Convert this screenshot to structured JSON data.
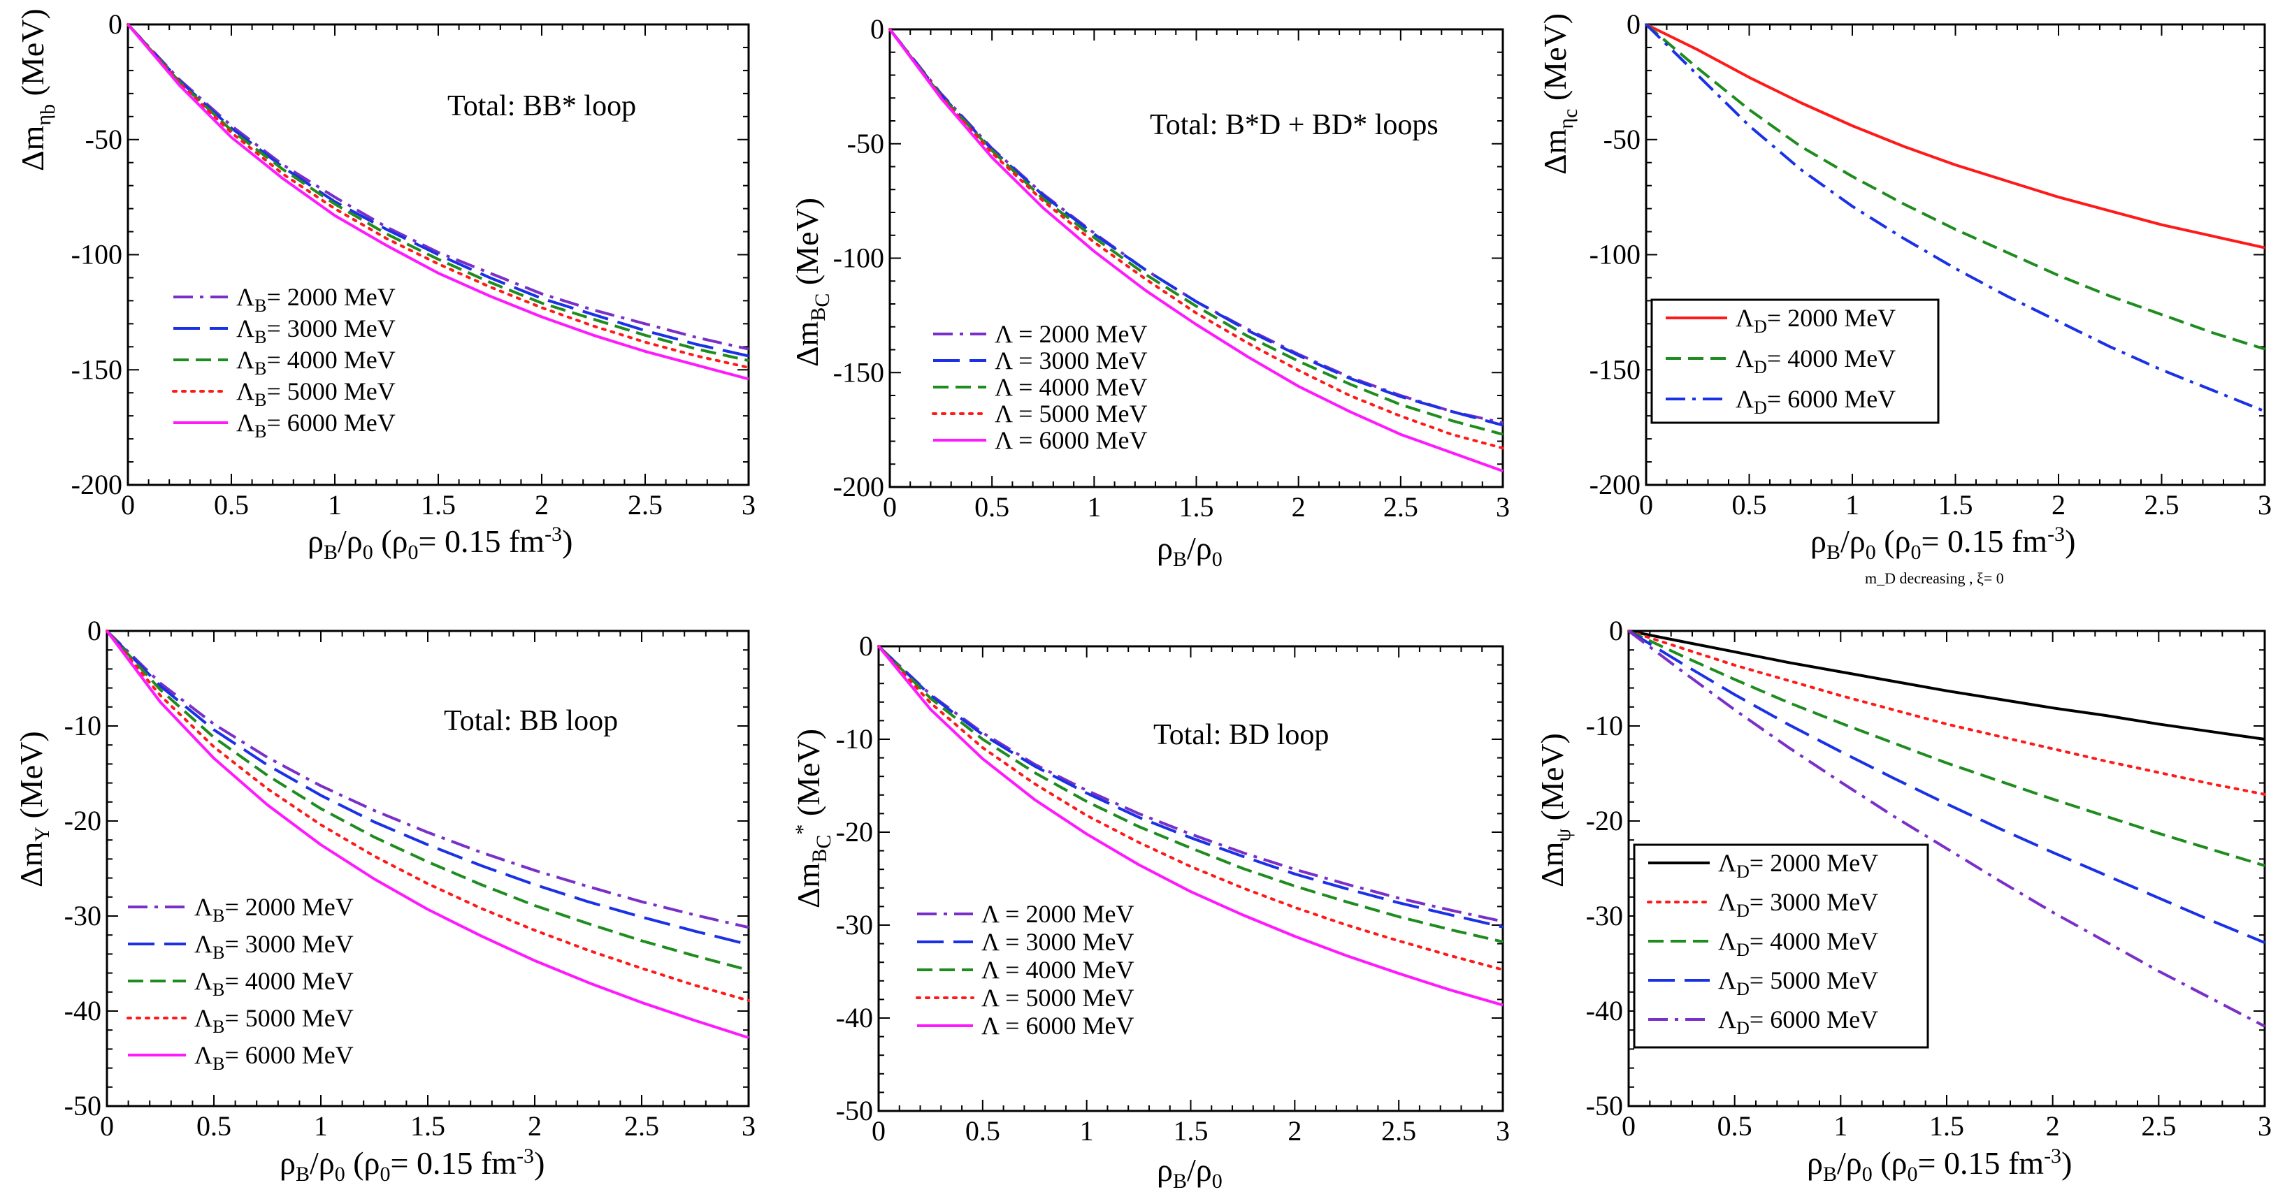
{
  "figure": {
    "note": "m_D decreasing , ξ= 0"
  },
  "chart_data": [
    {
      "id": "p1",
      "type": "line",
      "title": "Total: BB* loop",
      "xlabel": "ρ_B/ρ_0 (ρ_0= 0.15 fm^-3)",
      "ylabel": "Δm_ηb (MeV)",
      "xlim": [
        0,
        3
      ],
      "ylim": [
        -200,
        0
      ],
      "xticks": [
        0,
        0.5,
        1,
        1.5,
        2,
        2.5,
        3
      ],
      "xticklabels": [
        "0",
        "0.5",
        "1",
        "1.5",
        "2",
        "2.5",
        "3"
      ],
      "yticks": [
        0,
        -50,
        -100,
        -150,
        -200
      ],
      "yticklabels": [
        "0",
        "-50",
        "-100",
        "-150",
        "-200"
      ],
      "x": [
        0,
        0.25,
        0.5,
        0.75,
        1,
        1.25,
        1.5,
        1.75,
        2,
        2.25,
        2.5,
        2.75,
        3
      ],
      "series": [
        {
          "name": "Λ_B= 2000 MeV",
          "color": "#7a2fc8",
          "dash": "dashdot",
          "values": [
            0,
            -24,
            -44,
            -61,
            -75,
            -88,
            -99,
            -108,
            -117,
            -124,
            -130,
            -136,
            -141
          ]
        },
        {
          "name": "Λ_B= 3000 MeV",
          "color": "#1a31e6",
          "dash": "longdash",
          "values": [
            0,
            -24.5,
            -45,
            -62,
            -77,
            -89,
            -100,
            -110,
            -119,
            -126,
            -133,
            -139,
            -144
          ]
        },
        {
          "name": "Λ_B= 4000 MeV",
          "color": "#1f8c1f",
          "dash": "dash",
          "values": [
            0,
            -25,
            -46,
            -63,
            -78,
            -91,
            -102,
            -112,
            -121,
            -128,
            -135,
            -141,
            -146
          ]
        },
        {
          "name": "Λ_B= 5000 MeV",
          "color": "#ff1a1a",
          "dash": "dot",
          "values": [
            0,
            -25.5,
            -47,
            -65,
            -80,
            -93,
            -104,
            -114,
            -123,
            -131,
            -138,
            -144,
            -149
          ]
        },
        {
          "name": "Λ_B= 6000 MeV",
          "color": "#ff19ff",
          "dash": "solid",
          "values": [
            0,
            -26.5,
            -49,
            -67,
            -83,
            -96,
            -108,
            -118,
            -127,
            -135,
            -142,
            -148,
            -154
          ]
        }
      ]
    },
    {
      "id": "p2",
      "type": "line",
      "title": "Total: B*D + BD* loops",
      "xlabel": "ρ_B/ρ_0",
      "ylabel": "Δm_BC (MeV)",
      "xlim": [
        0,
        3
      ],
      "ylim": [
        -200,
        0
      ],
      "xticks": [
        0,
        0.5,
        1,
        1.5,
        2,
        2.5,
        3
      ],
      "xticklabels": [
        "0",
        "0.5",
        "1",
        "1.5",
        "2",
        "2.5",
        "3"
      ],
      "yticks": [
        0,
        -50,
        -100,
        -150,
        -200
      ],
      "yticklabels": [
        "0",
        "-50",
        "-100",
        "-150",
        "-200"
      ],
      "x": [
        0,
        0.25,
        0.5,
        0.75,
        1,
        1.25,
        1.5,
        1.75,
        2,
        2.25,
        2.5,
        2.75,
        3
      ],
      "series": [
        {
          "name": "Λ = 2000 MeV",
          "color": "#7a2fc8",
          "dash": "dashdot",
          "values": [
            0,
            -28,
            -52,
            -72,
            -89,
            -105,
            -119,
            -131,
            -142,
            -152,
            -160,
            -167,
            -172
          ]
        },
        {
          "name": "Λ = 3000 MeV",
          "color": "#1a31e6",
          "dash": "longdash",
          "values": [
            0,
            -28.5,
            -52.5,
            -72.5,
            -89.5,
            -105,
            -119,
            -131.5,
            -142.5,
            -152.5,
            -160.5,
            -167,
            -173
          ]
        },
        {
          "name": "Λ = 4000 MeV",
          "color": "#1f8c1f",
          "dash": "dash",
          "values": [
            0,
            -29,
            -53,
            -74,
            -91,
            -107,
            -121,
            -134,
            -145,
            -155,
            -164,
            -171,
            -177
          ]
        },
        {
          "name": "Λ = 5000 MeV",
          "color": "#ff1a1a",
          "dash": "dot",
          "values": [
            0,
            -29.5,
            -54,
            -75,
            -93,
            -109,
            -124,
            -137,
            -149,
            -160,
            -169,
            -177,
            -183
          ]
        },
        {
          "name": "Λ = 6000 MeV",
          "color": "#ff19ff",
          "dash": "solid",
          "values": [
            0,
            -30,
            -56,
            -78,
            -97,
            -114,
            -129,
            -143,
            -156,
            -167,
            -177,
            -185,
            -193
          ]
        }
      ]
    },
    {
      "id": "p3",
      "type": "line",
      "title": "",
      "xlabel": "ρ_B/ρ_0 (ρ_0= 0.15 fm^-3)",
      "ylabel": "Δm_ηc (MeV)",
      "xlim": [
        0,
        3
      ],
      "ylim": [
        -200,
        0
      ],
      "xticks": [
        0,
        0.5,
        1,
        1.5,
        2,
        2.5,
        3
      ],
      "xticklabels": [
        "0",
        "0.5",
        "1",
        "1.5",
        "2",
        "2.5",
        "3"
      ],
      "yticks": [
        0,
        -50,
        -100,
        -150,
        -200
      ],
      "yticklabels": [
        "0",
        "-50",
        "-100",
        "-150",
        "-200"
      ],
      "x": [
        0,
        0.25,
        0.5,
        0.75,
        1,
        1.25,
        1.5,
        1.75,
        2,
        2.25,
        2.5,
        2.75,
        3
      ],
      "series": [
        {
          "name": "Λ_D= 2000 MeV",
          "color": "#ff1a1a",
          "dash": "solid",
          "values": [
            0,
            -11,
            -23,
            -34,
            -44,
            -53,
            -61,
            -68,
            -75,
            -81,
            -87,
            -92,
            -97
          ]
        },
        {
          "name": "Λ_D= 4000 MeV",
          "color": "#1f8c1f",
          "dash": "dash",
          "values": [
            0,
            -19,
            -37,
            -53,
            -66,
            -78,
            -89,
            -99,
            -109,
            -118,
            -126,
            -134,
            -141
          ]
        },
        {
          "name": "Λ_D= 6000 MeV",
          "color": "#1a31e6",
          "dash": "dashdot",
          "values": [
            0,
            -22,
            -44,
            -63,
            -79,
            -93,
            -106,
            -118,
            -129,
            -140,
            -150,
            -159,
            -168
          ]
        }
      ]
    },
    {
      "id": "p4",
      "type": "line",
      "title": "Total: BB loop",
      "xlabel": "ρ_B/ρ_0 (ρ_0= 0.15 fm^-3)",
      "ylabel": "Δm_Υ (MeV)",
      "xlim": [
        0,
        3
      ],
      "ylim": [
        -50,
        0
      ],
      "xticks": [
        0,
        0.5,
        1,
        1.5,
        2,
        2.5,
        3
      ],
      "xticklabels": [
        "0",
        "0.5",
        "1",
        "1.5",
        "2",
        "2.5",
        "3"
      ],
      "yticks": [
        0,
        -10,
        -20,
        -30,
        -40,
        -50
      ],
      "yticklabels": [
        "0",
        "-10",
        "-20",
        "-30",
        "-40",
        "-50"
      ],
      "x": [
        0,
        0.25,
        0.5,
        0.75,
        1,
        1.25,
        1.5,
        1.75,
        2,
        2.25,
        2.5,
        2.75,
        3
      ],
      "series": [
        {
          "name": "Λ_B= 2000 MeV",
          "color": "#7a2fc8",
          "dash": "dashdot",
          "values": [
            0,
            -5.5,
            -9.8,
            -13.3,
            -16.3,
            -18.9,
            -21.2,
            -23.3,
            -25.2,
            -26.9,
            -28.5,
            -29.9,
            -31.2
          ]
        },
        {
          "name": "Λ_B= 3000 MeV",
          "color": "#1a31e6",
          "dash": "longdash",
          "values": [
            0,
            -5.8,
            -10.4,
            -14.1,
            -17.3,
            -20.1,
            -22.5,
            -24.7,
            -26.7,
            -28.5,
            -30.1,
            -31.6,
            -33
          ]
        },
        {
          "name": "Λ_B= 4000 MeV",
          "color": "#1f8c1f",
          "dash": "dash",
          "values": [
            0,
            -6.2,
            -11.2,
            -15.2,
            -18.7,
            -21.7,
            -24.3,
            -26.7,
            -28.9,
            -30.8,
            -32.6,
            -34.2,
            -35.7
          ]
        },
        {
          "name": "Λ_B= 5000 MeV",
          "color": "#ff1a1a",
          "dash": "dot",
          "values": [
            0,
            -6.8,
            -12.2,
            -16.6,
            -20.4,
            -23.7,
            -26.6,
            -29.2,
            -31.5,
            -33.6,
            -35.5,
            -37.3,
            -38.9
          ]
        },
        {
          "name": "Λ_B= 6000 MeV",
          "color": "#ff19ff",
          "dash": "solid",
          "values": [
            0,
            -7.5,
            -13.4,
            -18.3,
            -22.5,
            -26.1,
            -29.3,
            -32.1,
            -34.7,
            -37,
            -39.1,
            -41,
            -42.8
          ]
        }
      ]
    },
    {
      "id": "p5",
      "type": "line",
      "title": "Total: BD loop",
      "xlabel": "ρ_B/ρ_0",
      "ylabel": "Δm_BC* (MeV)",
      "xlim": [
        0,
        3
      ],
      "ylim": [
        -50,
        0
      ],
      "xticks": [
        0,
        0.5,
        1,
        1.5,
        2,
        2.5,
        3
      ],
      "xticklabels": [
        "0",
        "0.5",
        "1",
        "1.5",
        "2",
        "2.5",
        "3"
      ],
      "yticks": [
        0,
        -10,
        -20,
        -30,
        -40,
        -50
      ],
      "yticklabels": [
        "0",
        "-10",
        "-20",
        "-30",
        "-40",
        "-50"
      ],
      "x": [
        0,
        0.25,
        0.5,
        0.75,
        1,
        1.25,
        1.5,
        1.75,
        2,
        2.25,
        2.5,
        2.75,
        3
      ],
      "series": [
        {
          "name": "Λ = 2000 MeV",
          "color": "#7a2fc8",
          "dash": "dashdot",
          "values": [
            0,
            -5.2,
            -9.3,
            -12.7,
            -15.5,
            -18,
            -20.2,
            -22.2,
            -24,
            -25.6,
            -27.1,
            -28.4,
            -29.6
          ]
        },
        {
          "name": "Λ = 3000 MeV",
          "color": "#1a31e6",
          "dash": "longdash",
          "values": [
            0,
            -5.3,
            -9.5,
            -12.9,
            -15.8,
            -18.4,
            -20.6,
            -22.6,
            -24.5,
            -26.1,
            -27.6,
            -28.9,
            -30.2
          ]
        },
        {
          "name": "Λ = 4000 MeV",
          "color": "#1f8c1f",
          "dash": "dash",
          "values": [
            0,
            -5.6,
            -10,
            -13.6,
            -16.7,
            -19.4,
            -21.7,
            -23.9,
            -25.8,
            -27.5,
            -29.1,
            -30.5,
            -31.8
          ]
        },
        {
          "name": "Λ = 5000 MeV",
          "color": "#ff1a1a",
          "dash": "dot",
          "values": [
            0,
            -6.1,
            -10.9,
            -14.8,
            -18.2,
            -21.1,
            -23.7,
            -26,
            -28.1,
            -30,
            -31.7,
            -33.3,
            -34.8
          ]
        },
        {
          "name": "Λ = 6000 MeV",
          "color": "#ff19ff",
          "dash": "solid",
          "values": [
            0,
            -6.8,
            -12.1,
            -16.5,
            -20.2,
            -23.5,
            -26.4,
            -28.9,
            -31.2,
            -33.3,
            -35.2,
            -37,
            -38.6
          ]
        }
      ]
    },
    {
      "id": "p6",
      "type": "line",
      "title": "",
      "xlabel": "ρ_B/ρ_0 (ρ_0= 0.15 fm^-3)",
      "ylabel": "Δm_ψ (MeV)",
      "xlim": [
        0,
        3
      ],
      "ylim": [
        -50,
        0
      ],
      "xticks": [
        0,
        0.5,
        1,
        1.5,
        2,
        2.5,
        3
      ],
      "xticklabels": [
        "0",
        "0.5",
        "1",
        "1.5",
        "2",
        "2.5",
        "3"
      ],
      "yticks": [
        0,
        -10,
        -20,
        -30,
        -40,
        -50
      ],
      "yticklabels": [
        "0",
        "-10",
        "-20",
        "-30",
        "-40",
        "-50"
      ],
      "x": [
        0,
        0.25,
        0.5,
        0.75,
        1,
        1.25,
        1.5,
        1.75,
        2,
        2.25,
        2.5,
        2.75,
        3
      ],
      "series": [
        {
          "name": "Λ_D= 2000 MeV",
          "color": "#000000",
          "dash": "solid",
          "values": [
            0,
            -1.1,
            -2.2,
            -3.3,
            -4.3,
            -5.3,
            -6.3,
            -7.2,
            -8.1,
            -8.9,
            -9.8,
            -10.6,
            -11.4
          ]
        },
        {
          "name": "Λ_D= 3000 MeV",
          "color": "#ff1a1a",
          "dash": "dot",
          "values": [
            0,
            -1.8,
            -3.6,
            -5.2,
            -6.8,
            -8.3,
            -9.8,
            -11.1,
            -12.4,
            -13.7,
            -14.9,
            -16.1,
            -17.2
          ]
        },
        {
          "name": "Λ_D= 4000 MeV",
          "color": "#1f8c1f",
          "dash": "dash",
          "values": [
            0,
            -2.6,
            -5.1,
            -7.5,
            -9.7,
            -11.8,
            -13.9,
            -15.8,
            -17.7,
            -19.5,
            -21.3,
            -23,
            -24.7
          ]
        },
        {
          "name": "Λ_D= 5000 MeV",
          "color": "#1a31e6",
          "dash": "longdash",
          "values": [
            0,
            -3.4,
            -6.7,
            -9.8,
            -12.7,
            -15.5,
            -18.2,
            -20.8,
            -23.3,
            -25.7,
            -28.1,
            -30.5,
            -32.8
          ]
        },
        {
          "name": "Λ_D= 6000 MeV",
          "color": "#7a2fc8",
          "dash": "dashdot",
          "values": [
            0,
            -4.2,
            -8.3,
            -12.2,
            -15.9,
            -19.5,
            -22.9,
            -26.3,
            -29.6,
            -32.7,
            -35.8,
            -38.7,
            -41.6
          ]
        }
      ]
    }
  ]
}
